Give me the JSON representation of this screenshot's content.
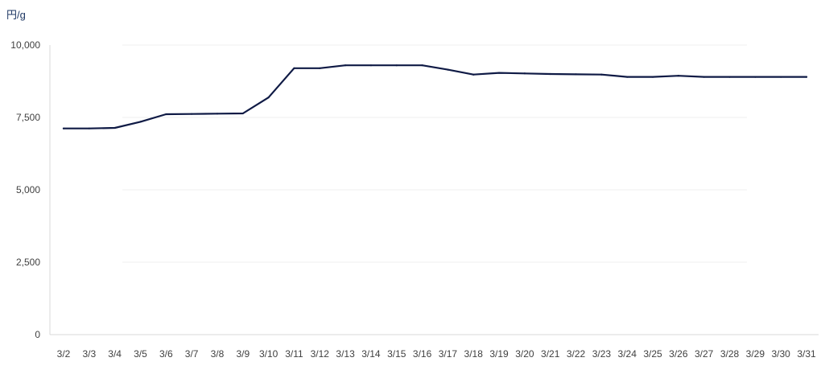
{
  "chart_data": {
    "type": "line",
    "unit_label": "円/g",
    "categories": [
      "3/2",
      "3/3",
      "3/4",
      "3/5",
      "3/6",
      "3/7",
      "3/8",
      "3/9",
      "3/10",
      "3/11",
      "3/12",
      "3/13",
      "3/14",
      "3/15",
      "3/16",
      "3/17",
      "3/18",
      "3/19",
      "3/20",
      "3/21",
      "3/22",
      "3/23",
      "3/24",
      "3/25",
      "3/26",
      "3/27",
      "3/28",
      "3/29",
      "3/30",
      "3/31"
    ],
    "series": [
      {
        "values": [
          7120,
          7120,
          7140,
          7350,
          7610,
          7620,
          7630,
          7640,
          8190,
          9200,
          9200,
          9300,
          9300,
          9300,
          9300,
          9150,
          8980,
          9040,
          9020,
          9000,
          8990,
          8980,
          8900,
          8900,
          8940,
          8900,
          8900,
          8900,
          8900,
          8900
        ]
      }
    ],
    "ylim": [
      0,
      10000
    ],
    "yticks": [
      "0",
      "2,500",
      "5,000",
      "7,500",
      "10,000"
    ],
    "ytick_values": [
      0,
      2500,
      5000,
      7500,
      10000
    ],
    "grid": true,
    "colors": {
      "line": "#0f1a45",
      "grid": "#efefef",
      "axis": "#d9d9d9",
      "tick_text": "#404040",
      "unit_text": "#1f3864"
    }
  }
}
